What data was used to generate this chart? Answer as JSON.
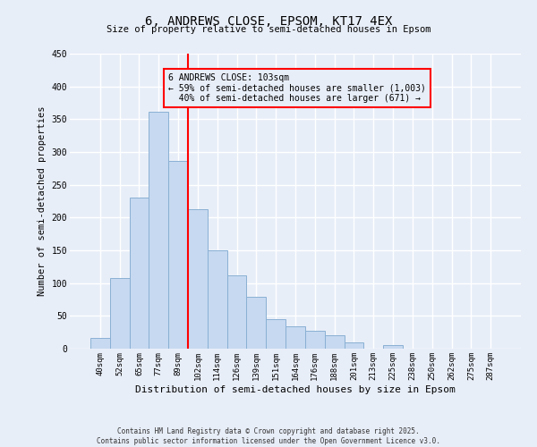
{
  "title": "6, ANDREWS CLOSE, EPSOM, KT17 4EX",
  "subtitle": "Size of property relative to semi-detached houses in Epsom",
  "xlabel": "Distribution of semi-detached houses by size in Epsom",
  "ylabel": "Number of semi-detached properties",
  "footer_line1": "Contains HM Land Registry data © Crown copyright and database right 2025.",
  "footer_line2": "Contains public sector information licensed under the Open Government Licence v3.0.",
  "bar_labels": [
    "40sqm",
    "52sqm",
    "65sqm",
    "77sqm",
    "89sqm",
    "102sqm",
    "114sqm",
    "126sqm",
    "139sqm",
    "151sqm",
    "164sqm",
    "176sqm",
    "188sqm",
    "201sqm",
    "213sqm",
    "225sqm",
    "238sqm",
    "250sqm",
    "262sqm",
    "275sqm",
    "287sqm"
  ],
  "bar_values": [
    17,
    108,
    230,
    362,
    287,
    213,
    150,
    112,
    79,
    45,
    34,
    27,
    21,
    9,
    0,
    5,
    0,
    0,
    0,
    0,
    0
  ],
  "bar_color": "#c6d9f0",
  "bar_edge_color": "#8ab0d4",
  "reference_line_color": "red",
  "reference_line_index": 5,
  "annotation_line1": "6 ANDREWS CLOSE: 103sqm",
  "annotation_line2": "← 59% of semi-detached houses are smaller (1,003)",
  "annotation_line3": "  40% of semi-detached houses are larger (671) →",
  "annotation_box_edgecolor": "red",
  "ylim": [
    0,
    450
  ],
  "yticks": [
    0,
    50,
    100,
    150,
    200,
    250,
    300,
    350,
    400,
    450
  ],
  "background_color": "#e8eef8",
  "grid_color": "#ffffff"
}
